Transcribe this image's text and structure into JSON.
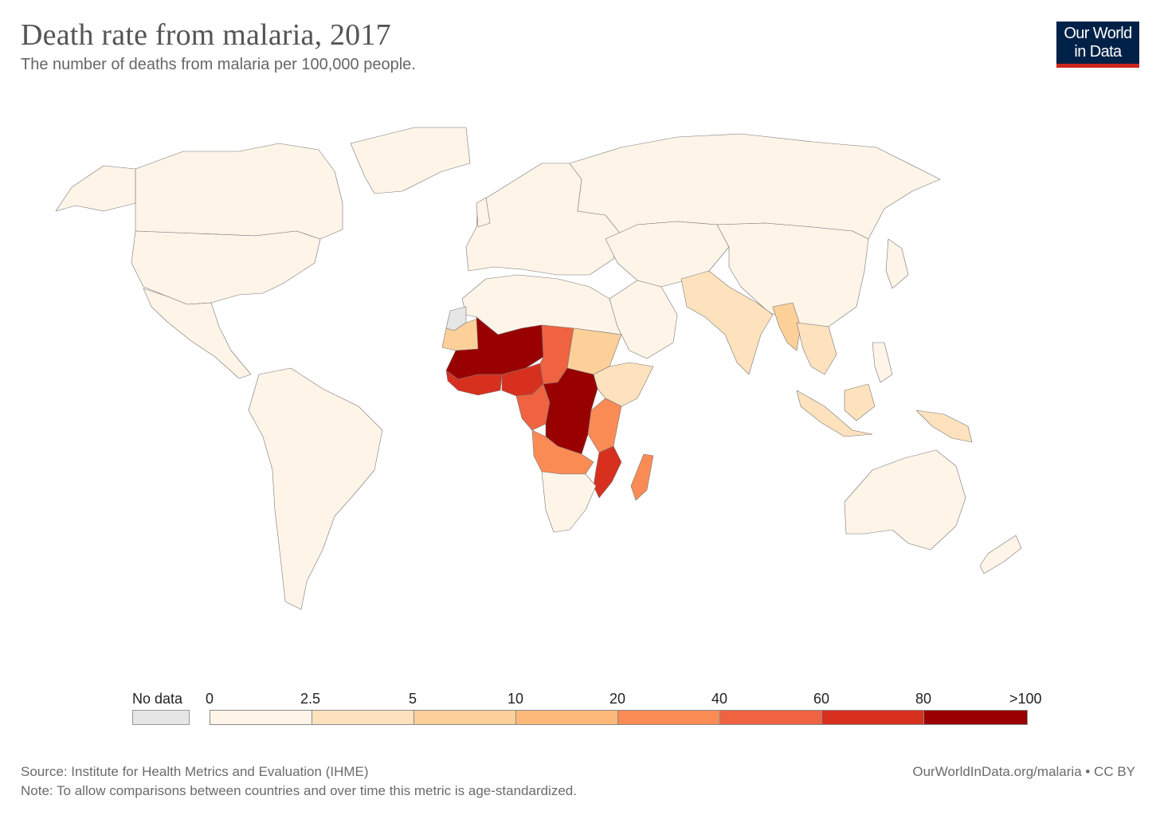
{
  "header": {
    "title": "Death rate from malaria, 2017",
    "subtitle": "The number of deaths from malaria per 100,000 people.",
    "logo_line1": "Our World",
    "logo_line2": "in Data"
  },
  "legend": {
    "no_data_label": "No data",
    "no_data_color": "#e6e6e6",
    "bins": [
      {
        "from": "0",
        "to": "2.5",
        "color": "#fff4e8"
      },
      {
        "from": "2.5",
        "to": "5",
        "color": "#fde2bd"
      },
      {
        "from": "5",
        "to": "10",
        "color": "#fdd09a"
      },
      {
        "from": "10",
        "to": "20",
        "color": "#fdb97a"
      },
      {
        "from": "20",
        "to": "40",
        "color": "#fb8b55"
      },
      {
        "from": "40",
        "to": "60",
        "color": "#ef6340"
      },
      {
        "from": "60",
        "to": "80",
        "color": "#d7301f"
      },
      {
        "from": "80",
        "to": ">100",
        "color": "#990000"
      }
    ]
  },
  "map_regions": [
    {
      "region": "West Sahel / Mali, Burkina Faso, Niger",
      "bin": ">100"
    },
    {
      "region": "Nigeria",
      "bin": "80"
    },
    {
      "region": "Central Africa (DR Congo, CAR)",
      "bin": ">100"
    },
    {
      "region": "Chad",
      "bin": "40"
    },
    {
      "region": "Mozambique",
      "bin": "60"
    },
    {
      "region": "Madagascar",
      "bin": "20"
    },
    {
      "region": "Angola / Zambia",
      "bin": "20"
    },
    {
      "region": "Sudan",
      "bin": "5"
    },
    {
      "region": "Mauritania / Senegal",
      "bin": "5"
    },
    {
      "region": "India",
      "bin": "2.5"
    },
    {
      "region": "Myanmar",
      "bin": "5"
    },
    {
      "region": "Papua New Guinea",
      "bin": "2.5"
    }
  ],
  "footer": {
    "source": "Source: Institute for Health Metrics and Evaluation (IHME)",
    "note": "Note: To allow comparisons between countries and over time this metric is age-standardized.",
    "credit": "OurWorldInData.org/malaria • CC BY"
  }
}
